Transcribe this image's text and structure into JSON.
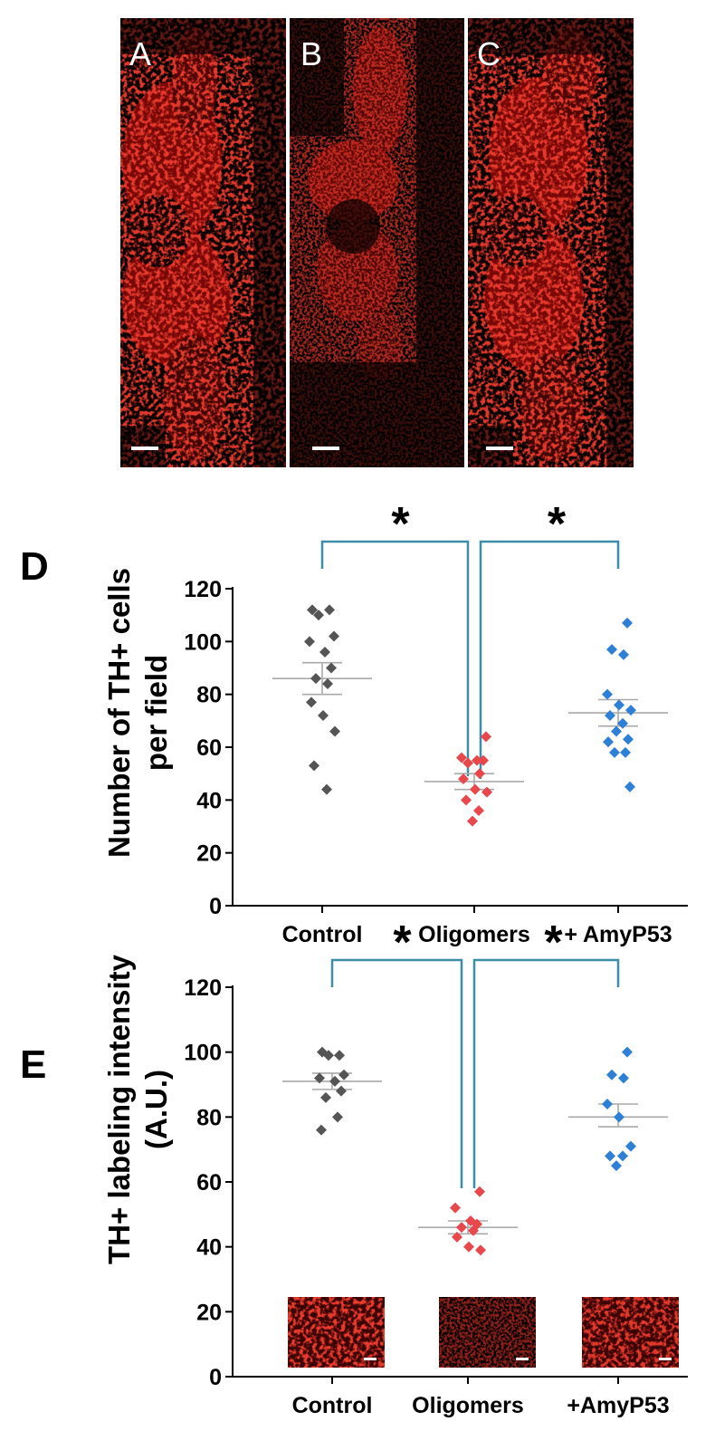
{
  "panels": {
    "micrographs": [
      {
        "label": "A"
      },
      {
        "label": "B"
      },
      {
        "label": "C"
      }
    ],
    "panel_d_letter": "D",
    "panel_e_letter": "E"
  },
  "colors": {
    "control": "#555555",
    "oligomers": "#e8474c",
    "amyp53": "#2e7fd6",
    "bracket": "#3b8ea5",
    "stain": "#e01a12"
  },
  "chart_data": [
    {
      "type": "scatter",
      "panel": "D",
      "ylabel": [
        "Number of TH+ cells",
        "per field"
      ],
      "categories": [
        "Control",
        "Oligomers",
        "+ AmyP53"
      ],
      "ylim": [
        0,
        120
      ],
      "yticks": [
        0,
        20,
        40,
        60,
        80,
        100,
        120
      ],
      "significance": [
        "*",
        "*"
      ],
      "series": [
        {
          "category": "Control",
          "color": "#555555",
          "mean": 86,
          "sem_upper": 92,
          "sem_lower": 80,
          "points": [
            112,
            112,
            110,
            102,
            100,
            96,
            90,
            86,
            84,
            77,
            72,
            66,
            53,
            44
          ]
        },
        {
          "category": "Oligomers",
          "color": "#e8474c",
          "mean": 47,
          "sem_upper": 50,
          "sem_lower": 44,
          "points": [
            64,
            56,
            55,
            55,
            54,
            50,
            48,
            44,
            43,
            40,
            36,
            32
          ]
        },
        {
          "category": "+ AmyP53",
          "color": "#2e7fd6",
          "mean": 73,
          "sem_upper": 78,
          "sem_lower": 68,
          "points": [
            107,
            97,
            95,
            80,
            76,
            74,
            72,
            69,
            66,
            63,
            62,
            58,
            58,
            45
          ]
        }
      ]
    },
    {
      "type": "scatter",
      "panel": "E",
      "ylabel": [
        "TH+ labeling intensity",
        "(A.U.)"
      ],
      "categories": [
        "Control",
        "Oligomers",
        "+AmyP53"
      ],
      "ylim": [
        0,
        120
      ],
      "yticks": [
        0,
        20,
        40,
        60,
        80,
        100,
        120
      ],
      "significance": [
        "*",
        "*"
      ],
      "series": [
        {
          "category": "Control",
          "color": "#555555",
          "mean": 91,
          "sem_upper": 93.5,
          "sem_lower": 88.5,
          "points": [
            100,
            99,
            99,
            93,
            92,
            91,
            88,
            86,
            80,
            76
          ]
        },
        {
          "category": "Oligomers",
          "color": "#e8474c",
          "mean": 46,
          "sem_upper": 48,
          "sem_lower": 44,
          "points": [
            57,
            52,
            48,
            47,
            46,
            45,
            43,
            40,
            39
          ]
        },
        {
          "category": "+AmyP53",
          "color": "#2e7fd6",
          "mean": 80,
          "sem_upper": 84,
          "sem_lower": 77,
          "points": [
            100,
            93,
            92,
            84,
            80,
            71,
            68,
            68,
            65
          ]
        }
      ]
    }
  ]
}
